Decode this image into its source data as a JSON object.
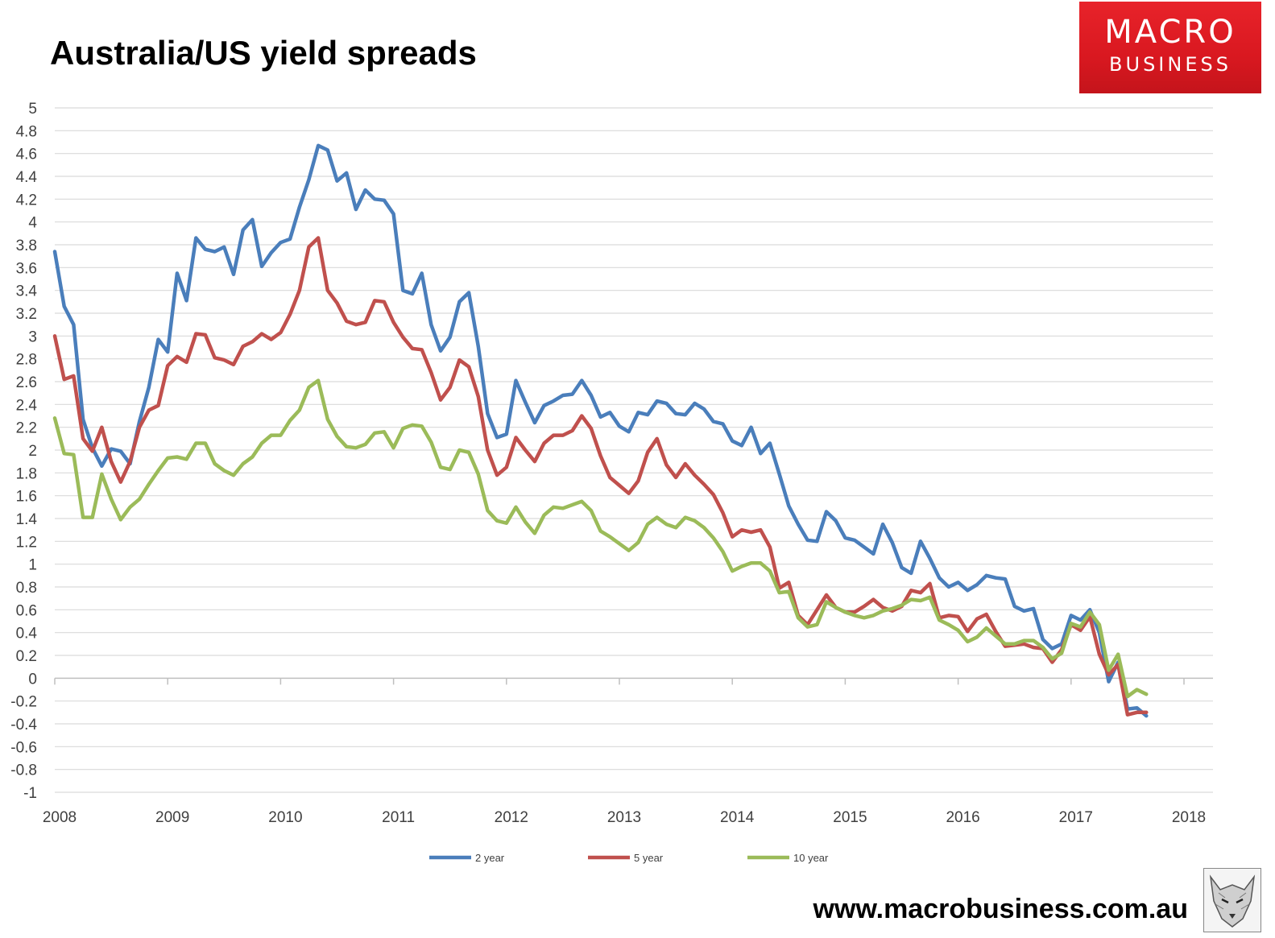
{
  "page": {
    "website": "www.macrobusiness.com.au",
    "logo": {
      "line1": "MACRO",
      "line2": "BUSINESS",
      "color": "#e01f26"
    }
  },
  "chart_data": {
    "type": "line",
    "title": "Australia/US yield spreads",
    "xlabel": "",
    "ylabel": "",
    "ylim": [
      -1,
      5
    ],
    "xlim": [
      2008,
      2018
    ],
    "yticks": [
      "-1",
      "-0.8",
      "-0.6",
      "-0.4",
      "-0.2",
      "0",
      "0.2",
      "0.4",
      "0.6",
      "0.8",
      "1",
      "1.2",
      "1.4",
      "1.6",
      "1.8",
      "2",
      "2.2",
      "2.4",
      "2.6",
      "2.8",
      "3",
      "3.2",
      "3.4",
      "3.6",
      "3.8",
      "4",
      "4.2",
      "4.4",
      "4.6",
      "4.8",
      "5"
    ],
    "xticks": [
      "2008",
      "2009",
      "2010",
      "2011",
      "2012",
      "2013",
      "2014",
      "2015",
      "2016",
      "2017",
      "2018"
    ],
    "grid": true,
    "legend": "bottom",
    "x_start": 2008,
    "x_step_months": 1,
    "series": [
      {
        "name": "2 year",
        "color": "#4a7ebb",
        "values": [
          3.74,
          3.26,
          3.1,
          2.27,
          2.02,
          1.86,
          2.01,
          1.99,
          1.88,
          2.25,
          2.55,
          2.97,
          2.86,
          3.55,
          3.31,
          3.86,
          3.76,
          3.74,
          3.78,
          3.54,
          3.93,
          4.02,
          3.61,
          3.73,
          3.82,
          3.85,
          4.13,
          4.37,
          4.67,
          4.63,
          4.36,
          4.43,
          4.11,
          4.28,
          4.2,
          4.19,
          4.07,
          3.4,
          3.37,
          3.55,
          3.1,
          2.87,
          2.99,
          3.3,
          3.38,
          2.91,
          2.32,
          2.11,
          2.14,
          2.61,
          2.42,
          2.24,
          2.39,
          2.43,
          2.48,
          2.49,
          2.61,
          2.48,
          2.29,
          2.33,
          2.21,
          2.16,
          2.33,
          2.31,
          2.43,
          2.41,
          2.32,
          2.31,
          2.41,
          2.36,
          2.25,
          2.23,
          2.08,
          2.04,
          2.2,
          1.97,
          2.06,
          1.79,
          1.51,
          1.35,
          1.21,
          1.2,
          1.46,
          1.38,
          1.23,
          1.21,
          1.15,
          1.09,
          1.35,
          1.19,
          0.97,
          0.92,
          1.2,
          1.05,
          0.88,
          0.8,
          0.84,
          0.77,
          0.82,
          0.9,
          0.88,
          0.87,
          0.63,
          0.59,
          0.61,
          0.34,
          0.26,
          0.3,
          0.55,
          0.51,
          0.6,
          0.4,
          -0.03,
          0.14,
          -0.27,
          -0.26,
          -0.33
        ]
      },
      {
        "name": "5 year",
        "color": "#c0504d",
        "values": [
          3.0,
          2.62,
          2.65,
          2.1,
          1.99,
          2.2,
          1.9,
          1.72,
          1.9,
          2.2,
          2.35,
          2.39,
          2.74,
          2.82,
          2.77,
          3.02,
          3.01,
          2.81,
          2.79,
          2.75,
          2.91,
          2.95,
          3.02,
          2.97,
          3.03,
          3.19,
          3.4,
          3.78,
          3.86,
          3.4,
          3.29,
          3.13,
          3.1,
          3.12,
          3.31,
          3.3,
          3.12,
          2.99,
          2.89,
          2.88,
          2.68,
          2.44,
          2.55,
          2.79,
          2.73,
          2.47,
          2.0,
          1.78,
          1.85,
          2.11,
          2.0,
          1.9,
          2.06,
          2.13,
          2.13,
          2.17,
          2.3,
          2.19,
          1.95,
          1.76,
          1.69,
          1.62,
          1.73,
          1.98,
          2.1,
          1.87,
          1.76,
          1.88,
          1.78,
          1.7,
          1.61,
          1.45,
          1.24,
          1.3,
          1.28,
          1.3,
          1.15,
          0.79,
          0.84,
          0.55,
          0.47,
          0.6,
          0.73,
          0.62,
          0.58,
          0.58,
          0.63,
          0.69,
          0.62,
          0.59,
          0.63,
          0.77,
          0.75,
          0.83,
          0.53,
          0.55,
          0.54,
          0.41,
          0.52,
          0.56,
          0.41,
          0.28,
          0.29,
          0.3,
          0.27,
          0.26,
          0.14,
          0.25,
          0.47,
          0.42,
          0.54,
          0.21,
          0.03,
          0.12,
          -0.32,
          -0.3,
          -0.3
        ]
      },
      {
        "name": "10 year",
        "color": "#9bbb59",
        "values": [
          2.28,
          1.97,
          1.96,
          1.41,
          1.41,
          1.79,
          1.57,
          1.39,
          1.5,
          1.57,
          1.7,
          1.82,
          1.93,
          1.94,
          1.92,
          2.06,
          2.06,
          1.88,
          1.82,
          1.78,
          1.88,
          1.94,
          2.06,
          2.13,
          2.13,
          2.26,
          2.35,
          2.55,
          2.61,
          2.27,
          2.12,
          2.03,
          2.02,
          2.05,
          2.15,
          2.16,
          2.02,
          2.19,
          2.22,
          2.21,
          2.07,
          1.85,
          1.83,
          2.0,
          1.98,
          1.79,
          1.47,
          1.38,
          1.36,
          1.5,
          1.37,
          1.27,
          1.43,
          1.5,
          1.49,
          1.52,
          1.55,
          1.47,
          1.29,
          1.24,
          1.18,
          1.12,
          1.19,
          1.35,
          1.41,
          1.35,
          1.32,
          1.41,
          1.38,
          1.32,
          1.23,
          1.11,
          0.94,
          0.98,
          1.01,
          1.01,
          0.94,
          0.75,
          0.76,
          0.53,
          0.45,
          0.47,
          0.67,
          0.62,
          0.58,
          0.55,
          0.53,
          0.55,
          0.59,
          0.61,
          0.64,
          0.69,
          0.68,
          0.71,
          0.51,
          0.47,
          0.42,
          0.32,
          0.36,
          0.44,
          0.37,
          0.3,
          0.3,
          0.33,
          0.33,
          0.27,
          0.17,
          0.22,
          0.48,
          0.45,
          0.58,
          0.47,
          0.07,
          0.21,
          -0.16,
          -0.1,
          -0.14
        ]
      }
    ]
  }
}
